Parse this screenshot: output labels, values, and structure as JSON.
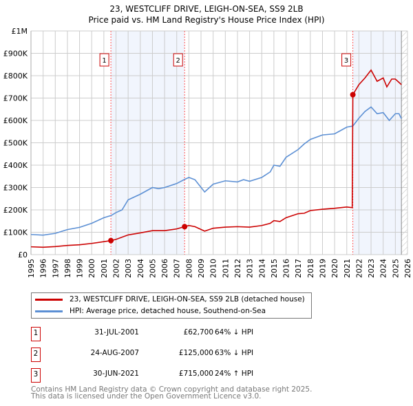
{
  "chart_data": {
    "type": "line",
    "title": "23, WESTCLIFF DRIVE, LEIGH-ON-SEA, SS9 2LB",
    "subtitle": "Price paid vs. HM Land Registry's House Price Index (HPI)",
    "xlim": [
      1995,
      2026
    ],
    "ylim": [
      0,
      1000000
    ],
    "x_ticks": [
      "1995",
      "1996",
      "1997",
      "1998",
      "1999",
      "2000",
      "2001",
      "2002",
      "2003",
      "2004",
      "2005",
      "2006",
      "2007",
      "2008",
      "2009",
      "2010",
      "2011",
      "2012",
      "2013",
      "2014",
      "2015",
      "2016",
      "2017",
      "2018",
      "2019",
      "2020",
      "2021",
      "2022",
      "2023",
      "2024",
      "2025",
      "2026"
    ],
    "y_ticks": [
      {
        "v": 0,
        "label": "£0"
      },
      {
        "v": 100000,
        "label": "£100K"
      },
      {
        "v": 200000,
        "label": "£200K"
      },
      {
        "v": 300000,
        "label": "£300K"
      },
      {
        "v": 400000,
        "label": "£400K"
      },
      {
        "v": 500000,
        "label": "£500K"
      },
      {
        "v": 600000,
        "label": "£600K"
      },
      {
        "v": 700000,
        "label": "£700K"
      },
      {
        "v": 800000,
        "label": "£800K"
      },
      {
        "v": 900000,
        "label": "£900K"
      },
      {
        "v": 1000000,
        "label": "£1M"
      }
    ],
    "grid": true,
    "series": [
      {
        "name": "23, WESTCLIFF DRIVE, LEIGH-ON-SEA, SS9 2LB (detached house)",
        "color": "#cc0000",
        "x": [
          1995,
          1996,
          1997,
          1998,
          1999,
          2000,
          2001,
          2001.58,
          2002,
          2003,
          2004,
          2005,
          2006,
          2007,
          2007.65,
          2008,
          2008.5,
          2009.3,
          2010,
          2011,
          2012,
          2013,
          2014,
          2014.7,
          2015,
          2015.5,
          2016,
          2017,
          2017.5,
          2018,
          2019,
          2020,
          2021,
          2021.45,
          2021.5,
          2022,
          2022.5,
          2023,
          2023.5,
          2024,
          2024.3,
          2024.7,
          2025,
          2025.3,
          2025.5
        ],
        "y": [
          35000,
          33000,
          36000,
          41000,
          44000,
          50000,
          58000,
          62700,
          68000,
          88000,
          97000,
          107000,
          107000,
          115000,
          125000,
          130000,
          125000,
          105000,
          118000,
          123000,
          125000,
          123000,
          130000,
          140000,
          152000,
          148000,
          165000,
          183000,
          185000,
          197000,
          203000,
          207000,
          213000,
          210000,
          715000,
          760000,
          790000,
          825000,
          775000,
          790000,
          750000,
          785000,
          785000,
          770000,
          760000
        ]
      },
      {
        "name": "HPI: Average price, detached house, Southend-on-Sea",
        "color": "#5b8fd4",
        "x": [
          1995,
          1996,
          1997,
          1998,
          1999,
          2000,
          2001,
          2001.6,
          2002,
          2002.5,
          2003,
          2004,
          2005,
          2005.5,
          2006,
          2007,
          2007.6,
          2008,
          2008.5,
          2009.3,
          2010,
          2011,
          2012,
          2012.5,
          2013,
          2014,
          2014.7,
          2015,
          2015.5,
          2016,
          2017,
          2017.5,
          2018,
          2019,
          2020,
          2020.5,
          2021,
          2021.5,
          2022,
          2022.5,
          2023,
          2023.5,
          2024,
          2024.5,
          2025,
          2025.3,
          2025.5
        ],
        "y": [
          90000,
          87000,
          95000,
          112000,
          122000,
          140000,
          165000,
          175000,
          188000,
          200000,
          245000,
          270000,
          300000,
          295000,
          300000,
          318000,
          335000,
          345000,
          335000,
          280000,
          315000,
          330000,
          325000,
          335000,
          328000,
          345000,
          370000,
          400000,
          395000,
          435000,
          470000,
          495000,
          515000,
          535000,
          540000,
          555000,
          570000,
          575000,
          610000,
          640000,
          660000,
          630000,
          635000,
          600000,
          630000,
          630000,
          608000
        ]
      }
    ],
    "sales": [
      {
        "n": "1",
        "x": 2001.58,
        "y": 62700,
        "date": "31-JUL-2001",
        "price": "£62,700",
        "hpi": "64% ↓ HPI"
      },
      {
        "n": "2",
        "x": 2007.65,
        "y": 125000,
        "date": "24-AUG-2007",
        "price": "£125,000",
        "hpi": "63% ↓ HPI"
      },
      {
        "n": "3",
        "x": 2021.5,
        "y": 715000,
        "date": "30-JUN-2021",
        "price": "£715,000",
        "hpi": "24% ↑ HPI"
      }
    ],
    "data_end": 2025.5
  },
  "footer": {
    "line1": "Contains HM Land Registry data © Crown copyright and database right 2025.",
    "line2": "This data is licensed under the Open Government Licence v3.0."
  }
}
